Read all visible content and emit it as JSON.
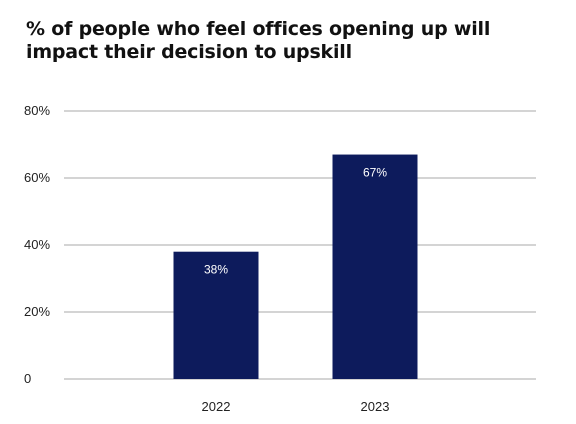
{
  "chart_data": {
    "type": "bar",
    "title": "% of people who feel offices opening up will impact their decision to upskill",
    "categories": [
      "2022",
      "2023"
    ],
    "values": [
      38,
      67
    ],
    "data_labels": [
      "38%",
      "67%"
    ],
    "xlabel": "",
    "ylabel": "",
    "ylim": [
      0,
      80
    ],
    "yticks": [
      {
        "value": 0,
        "label": "0"
      },
      {
        "value": 20,
        "label": "20%"
      },
      {
        "value": 40,
        "label": "40%"
      },
      {
        "value": 60,
        "label": "60%"
      },
      {
        "value": 80,
        "label": "80%"
      }
    ],
    "grid": true,
    "legend": "none",
    "bar_color": "#0d1b5c",
    "grid_color": "#aaaaaa"
  }
}
